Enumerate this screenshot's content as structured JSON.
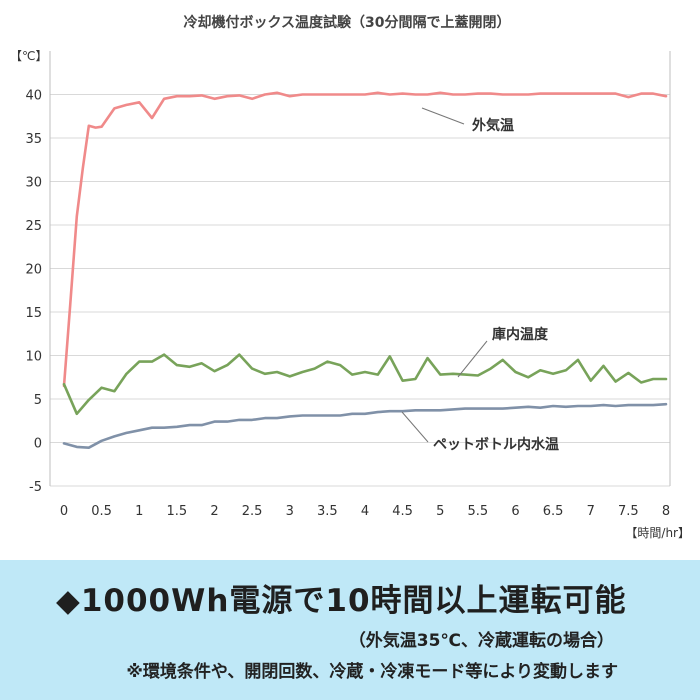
{
  "chart_data": {
    "type": "line",
    "title": "冷却機付ボックス温度試験（30分間隔で上蓋開閉）",
    "ylabel": "【℃】",
    "xlabel": "【時間/hr】",
    "ylim": [
      -5,
      45
    ],
    "xlim": [
      0,
      8
    ],
    "yticks": [
      -5,
      0,
      5,
      10,
      15,
      20,
      25,
      30,
      35,
      40
    ],
    "yticklabels": [
      "-5",
      "0",
      "5",
      "10",
      "15",
      "20",
      "25",
      "30",
      "35",
      "40"
    ],
    "xticks": [
      0,
      0.5,
      1,
      1.5,
      2,
      2.5,
      3,
      3.5,
      4,
      4.5,
      5,
      5.5,
      6,
      6.5,
      7,
      7.5,
      8
    ],
    "xticklabels": [
      "0",
      "0.5",
      "1",
      "1.5",
      "2",
      "2.5",
      "3",
      "3.5",
      "4",
      "4.5",
      "5",
      "5.5",
      "6",
      "6.5",
      "7",
      "7.5",
      "8"
    ],
    "grid": "horizontal",
    "legend": "none",
    "series": [
      {
        "name": "外気温",
        "color": "#f08a8a",
        "x": [
          0,
          0.08,
          0.17,
          0.25,
          0.33,
          0.42,
          0.5,
          0.67,
          0.83,
          1.0,
          1.17,
          1.33,
          1.5,
          1.67,
          1.83,
          2.0,
          2.17,
          2.33,
          2.5,
          2.67,
          2.83,
          3.0,
          3.17,
          3.33,
          3.5,
          3.67,
          3.83,
          4.0,
          4.17,
          4.33,
          4.5,
          4.67,
          4.83,
          5.0,
          5.17,
          5.33,
          5.5,
          5.67,
          5.83,
          6.0,
          6.17,
          6.33,
          6.5,
          6.67,
          6.83,
          7.0,
          7.17,
          7.33,
          7.5,
          7.67,
          7.83,
          8.0
        ],
        "values": [
          6.5,
          15.5,
          26.0,
          31.5,
          36.4,
          36.2,
          36.3,
          38.4,
          38.8,
          39.1,
          37.3,
          39.5,
          39.8,
          39.8,
          39.9,
          39.5,
          39.8,
          39.9,
          39.5,
          40.0,
          40.2,
          39.8,
          40.0,
          40.0,
          40.0,
          40.0,
          40.0,
          40.0,
          40.2,
          40.0,
          40.1,
          40.0,
          40.0,
          40.2,
          40.0,
          40.0,
          40.1,
          40.1,
          40.0,
          40.0,
          40.0,
          40.1,
          40.1,
          40.1,
          40.1,
          40.1,
          40.1,
          40.1,
          39.7,
          40.1,
          40.1,
          39.8
        ]
      },
      {
        "name": "庫内温度",
        "color": "#78a35a",
        "x": [
          0,
          0.17,
          0.33,
          0.5,
          0.67,
          0.83,
          1.0,
          1.17,
          1.33,
          1.5,
          1.67,
          1.83,
          2.0,
          2.17,
          2.33,
          2.5,
          2.67,
          2.83,
          3.0,
          3.17,
          3.33,
          3.5,
          3.67,
          3.83,
          4.0,
          4.17,
          4.33,
          4.5,
          4.67,
          4.83,
          5.0,
          5.17,
          5.33,
          5.5,
          5.67,
          5.83,
          6.0,
          6.17,
          6.33,
          6.5,
          6.67,
          6.83,
          7.0,
          7.17,
          7.33,
          7.5,
          7.67,
          7.83,
          8.0
        ],
        "values": [
          6.7,
          3.3,
          4.9,
          6.3,
          5.9,
          7.9,
          9.3,
          9.3,
          10.1,
          8.9,
          8.7,
          9.1,
          8.2,
          8.9,
          10.1,
          8.5,
          7.9,
          8.1,
          7.6,
          8.1,
          8.5,
          9.3,
          8.9,
          7.8,
          8.1,
          7.8,
          9.9,
          7.1,
          7.3,
          9.7,
          7.8,
          7.9,
          7.8,
          7.7,
          8.5,
          9.5,
          8.1,
          7.5,
          8.3,
          7.9,
          8.3,
          9.5,
          7.1,
          8.8,
          7.0,
          8.0,
          6.9,
          7.3,
          7.3
        ]
      },
      {
        "name": "ペットボトル内水温",
        "color": "#8091a8",
        "x": [
          0,
          0.17,
          0.33,
          0.5,
          0.67,
          0.83,
          1.0,
          1.17,
          1.33,
          1.5,
          1.67,
          1.83,
          2.0,
          2.17,
          2.33,
          2.5,
          2.67,
          2.83,
          3.0,
          3.17,
          3.33,
          3.5,
          3.67,
          3.83,
          4.0,
          4.17,
          4.33,
          4.5,
          4.67,
          4.83,
          5.0,
          5.17,
          5.33,
          5.5,
          5.67,
          5.83,
          6.0,
          6.17,
          6.33,
          6.5,
          6.67,
          6.83,
          7.0,
          7.17,
          7.33,
          7.5,
          7.67,
          7.83,
          8.0
        ],
        "values": [
          -0.1,
          -0.5,
          -0.6,
          0.2,
          0.7,
          1.1,
          1.4,
          1.7,
          1.7,
          1.8,
          2.0,
          2.0,
          2.4,
          2.4,
          2.6,
          2.6,
          2.8,
          2.8,
          3.0,
          3.1,
          3.1,
          3.1,
          3.1,
          3.3,
          3.3,
          3.5,
          3.6,
          3.6,
          3.7,
          3.7,
          3.7,
          3.8,
          3.9,
          3.9,
          3.9,
          3.9,
          4.0,
          4.1,
          4.0,
          4.2,
          4.1,
          4.2,
          4.2,
          4.3,
          4.2,
          4.3,
          4.3,
          4.3,
          4.4
        ]
      }
    ]
  },
  "banner": {
    "headline": "◆1000Wh電源で10時間以上運転可能",
    "condition": "（外気温35℃、冷蔵運転の場合）",
    "note": "※環境条件や、開閉回数、冷蔵・冷凍モード等により変動します"
  }
}
